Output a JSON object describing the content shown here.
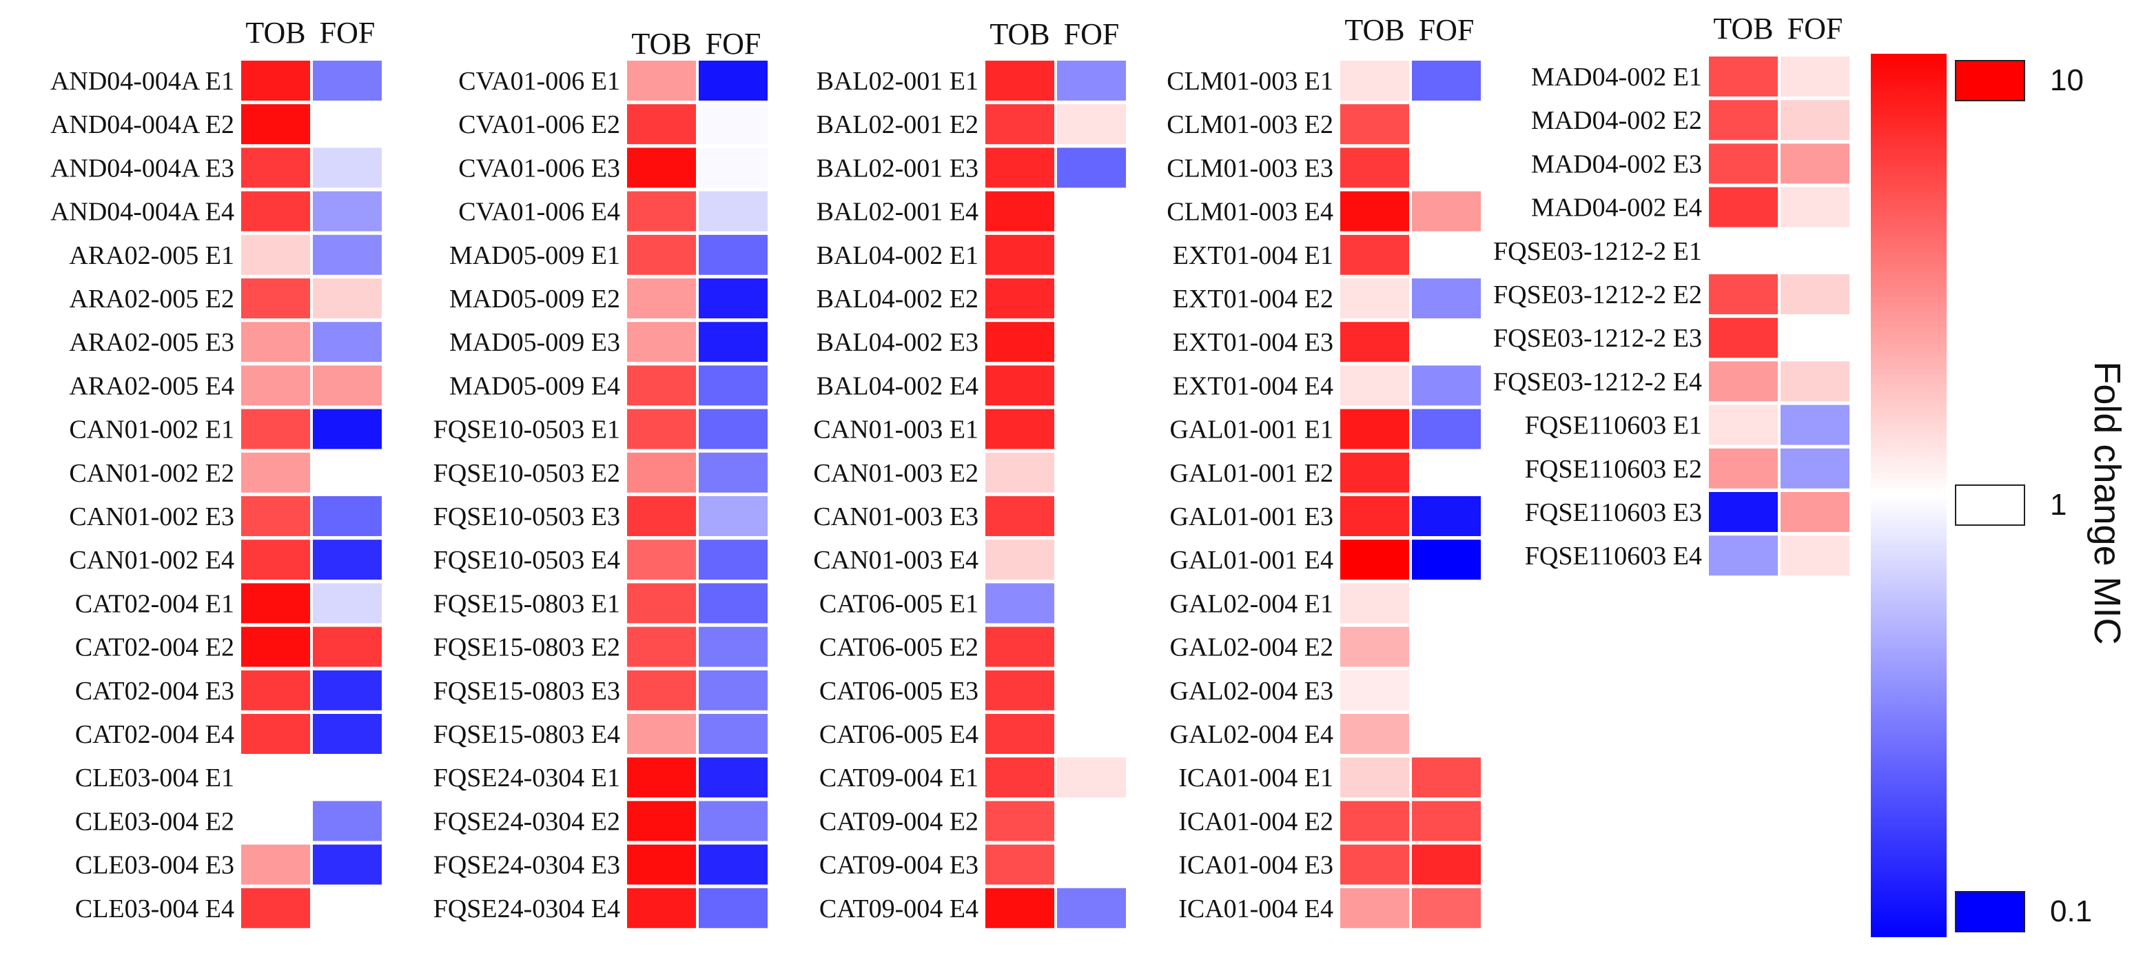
{
  "chart_data": {
    "type": "heatmap",
    "columns": [
      "TOB",
      "FOF"
    ],
    "scale": "log",
    "vmin": 0.1,
    "vmax": 10,
    "colors": {
      "low": "#0000ff",
      "mid": "#ffffff",
      "high": "#ff0000"
    },
    "legend": {
      "title": "Fold change MIC",
      "ticks": [
        {
          "label": "10",
          "value": 10
        },
        {
          "label": "1",
          "value": 1
        },
        {
          "label": "0.1",
          "value": 0.1
        }
      ]
    },
    "panels": [
      {
        "rows": [
          {
            "label": "AND04-004A E1",
            "TOB": 8,
            "FOF": 0.3
          },
          {
            "label": "AND04-004A E2",
            "TOB": 9,
            "FOF": 1
          },
          {
            "label": "AND04-004A E3",
            "TOB": 6,
            "FOF": 0.7
          },
          {
            "label": "AND04-004A E4",
            "TOB": 6,
            "FOF": 0.4
          },
          {
            "label": "ARA02-005 E1",
            "TOB": 1.5,
            "FOF": 0.35
          },
          {
            "label": "ARA02-005 E2",
            "TOB": 5,
            "FOF": 1.5
          },
          {
            "label": "ARA02-005 E3",
            "TOB": 2.5,
            "FOF": 0.35
          },
          {
            "label": "ARA02-005 E4",
            "TOB": 2.5,
            "FOF": 2.5
          },
          {
            "label": "CAN01-002 E1",
            "TOB": 5,
            "FOF": 0.12
          },
          {
            "label": "CAN01-002 E2",
            "TOB": 2.5,
            "FOF": 1
          },
          {
            "label": "CAN01-002 E3",
            "TOB": 5,
            "FOF": 0.25
          },
          {
            "label": "CAN01-002 E4",
            "TOB": 6,
            "FOF": 0.15
          },
          {
            "label": "CAT02-004 E1",
            "TOB": 9,
            "FOF": 0.7
          },
          {
            "label": "CAT02-004 E2",
            "TOB": 9,
            "FOF": 6
          },
          {
            "label": "CAT02-004 E3",
            "TOB": 6,
            "FOF": 0.15
          },
          {
            "label": "CAT02-004 E4",
            "TOB": 6,
            "FOF": 0.15
          },
          {
            "label": "CLE03-004 E1",
            "TOB": 1,
            "FOF": 1
          },
          {
            "label": "CLE03-004 E2",
            "TOB": 1,
            "FOF": 0.3
          },
          {
            "label": "CLE03-004 E3",
            "TOB": 2.5,
            "FOF": 0.15
          },
          {
            "label": "CLE03-004 E4",
            "TOB": 6,
            "FOF": 1
          }
        ]
      },
      {
        "rows": [
          {
            "label": "CVA01-006 E1",
            "TOB": 2.5,
            "FOF": 0.12
          },
          {
            "label": "CVA01-006 E2",
            "TOB": 6,
            "FOF": 0.95
          },
          {
            "label": "CVA01-006 E3",
            "TOB": 9,
            "FOF": 0.95
          },
          {
            "label": "CVA01-006 E4",
            "TOB": 5,
            "FOF": 0.7
          },
          {
            "label": "MAD05-009 E1",
            "TOB": 5,
            "FOF": 0.25
          },
          {
            "label": "MAD05-009 E2",
            "TOB": 2.5,
            "FOF": 0.13
          },
          {
            "label": "MAD05-009 E3",
            "TOB": 2.5,
            "FOF": 0.13
          },
          {
            "label": "MAD05-009 E4",
            "TOB": 5,
            "FOF": 0.25
          },
          {
            "label": "FQSE10-0503 E1",
            "TOB": 5,
            "FOF": 0.25
          },
          {
            "label": "FQSE10-0503 E2",
            "TOB": 3,
            "FOF": 0.3
          },
          {
            "label": "FQSE10-0503 E3",
            "TOB": 6,
            "FOF": 0.45
          },
          {
            "label": "FQSE10-0503 E4",
            "TOB": 4,
            "FOF": 0.25
          },
          {
            "label": "FQSE15-0803 E1",
            "TOB": 5,
            "FOF": 0.25
          },
          {
            "label": "FQSE15-0803 E2",
            "TOB": 5,
            "FOF": 0.3
          },
          {
            "label": "FQSE15-0803 E3",
            "TOB": 5,
            "FOF": 0.3
          },
          {
            "label": "FQSE15-0803 E4",
            "TOB": 2.5,
            "FOF": 0.3
          },
          {
            "label": "FQSE24-0304 E1",
            "TOB": 9,
            "FOF": 0.14
          },
          {
            "label": "FQSE24-0304 E2",
            "TOB": 9,
            "FOF": 0.3
          },
          {
            "label": "FQSE24-0304 E3",
            "TOB": 9,
            "FOF": 0.14
          },
          {
            "label": "FQSE24-0304 E4",
            "TOB": 8,
            "FOF": 0.25
          }
        ]
      },
      {
        "rows": [
          {
            "label": "BAL02-001 E1",
            "TOB": 7,
            "FOF": 0.35
          },
          {
            "label": "BAL02-001 E2",
            "TOB": 6,
            "FOF": 1.3
          },
          {
            "label": "BAL02-001 E3",
            "TOB": 7,
            "FOF": 0.25
          },
          {
            "label": "BAL02-001 E4",
            "TOB": 8,
            "FOF": 1
          },
          {
            "label": "BAL04-002 E1",
            "TOB": 7,
            "FOF": 1
          },
          {
            "label": "BAL04-002 E2",
            "TOB": 7,
            "FOF": 1
          },
          {
            "label": "BAL04-002 E3",
            "TOB": 8,
            "FOF": 1
          },
          {
            "label": "BAL04-002 E4",
            "TOB": 7,
            "FOF": 1
          },
          {
            "label": "CAN01-003 E1",
            "TOB": 7,
            "FOF": 1
          },
          {
            "label": "CAN01-003 E2",
            "TOB": 1.5,
            "FOF": 1
          },
          {
            "label": "CAN01-003 E3",
            "TOB": 6,
            "FOF": 1
          },
          {
            "label": "CAN01-003 E4",
            "TOB": 1.5,
            "FOF": 1
          },
          {
            "label": "CAT06-005 E1",
            "TOB": 0.35,
            "FOF": 1
          },
          {
            "label": "CAT06-005 E2",
            "TOB": 6,
            "FOF": 1
          },
          {
            "label": "CAT06-005 E3",
            "TOB": 6,
            "FOF": 1
          },
          {
            "label": "CAT06-005 E4",
            "TOB": 6,
            "FOF": 1
          },
          {
            "label": "CAT09-004 E1",
            "TOB": 6,
            "FOF": 1.3
          },
          {
            "label": "CAT09-004 E2",
            "TOB": 5,
            "FOF": 1
          },
          {
            "label": "CAT09-004 E3",
            "TOB": 5,
            "FOF": 1
          },
          {
            "label": "CAT09-004 E4",
            "TOB": 9,
            "FOF": 0.3
          }
        ]
      },
      {
        "rows": [
          {
            "label": "CLM01-003 E1",
            "TOB": 1.3,
            "FOF": 0.25
          },
          {
            "label": "CLM01-003 E2",
            "TOB": 5,
            "FOF": 1
          },
          {
            "label": "CLM01-003 E3",
            "TOB": 6,
            "FOF": 1
          },
          {
            "label": "CLM01-003 E4",
            "TOB": 9,
            "FOF": 2.5
          },
          {
            "label": "EXT01-004 E1",
            "TOB": 6,
            "FOF": 1
          },
          {
            "label": "EXT01-004 E2",
            "TOB": 1.3,
            "FOF": 0.35
          },
          {
            "label": "EXT01-004 E3",
            "TOB": 7,
            "FOF": 1
          },
          {
            "label": "EXT01-004 E4",
            "TOB": 1.3,
            "FOF": 0.35
          },
          {
            "label": "GAL01-001 E1",
            "TOB": 8,
            "FOF": 0.25
          },
          {
            "label": "GAL01-001 E2",
            "TOB": 7,
            "FOF": 1
          },
          {
            "label": "GAL01-001 E3",
            "TOB": 7,
            "FOF": 0.12
          },
          {
            "label": "GAL01-001 E4",
            "TOB": 10,
            "FOF": 0.1
          },
          {
            "label": "GAL02-004 E1",
            "TOB": 1.3,
            "FOF": 1
          },
          {
            "label": "GAL02-004 E2",
            "TOB": 2,
            "FOF": 1
          },
          {
            "label": "GAL02-004 E3",
            "TOB": 1.2,
            "FOF": 1
          },
          {
            "label": "GAL02-004 E4",
            "TOB": 2,
            "FOF": 1
          },
          {
            "label": "ICA01-004 E1",
            "TOB": 1.5,
            "FOF": 5
          },
          {
            "label": "ICA01-004 E2",
            "TOB": 5,
            "FOF": 5
          },
          {
            "label": "ICA01-004 E3",
            "TOB": 5,
            "FOF": 7
          },
          {
            "label": "ICA01-004 E4",
            "TOB": 2.5,
            "FOF": 4
          }
        ]
      },
      {
        "rows": [
          {
            "label": "MAD04-002 E1",
            "TOB": 5,
            "FOF": 1.3
          },
          {
            "label": "MAD04-002 E2",
            "TOB": 5,
            "FOF": 1.5
          },
          {
            "label": "MAD04-002 E3",
            "TOB": 5,
            "FOF": 2.5
          },
          {
            "label": "MAD04-002 E4",
            "TOB": 6,
            "FOF": 1.3
          },
          {
            "label": "FQSE03-1212-2 E1",
            "TOB": 1,
            "FOF": 1
          },
          {
            "label": "FQSE03-1212-2 E2",
            "TOB": 5,
            "FOF": 1.5
          },
          {
            "label": "FQSE03-1212-2 E3",
            "TOB": 6,
            "FOF": 1
          },
          {
            "label": "FQSE03-1212-2 E4",
            "TOB": 2.5,
            "FOF": 1.5
          },
          {
            "label": "FQSE110603 E1",
            "TOB": 1.3,
            "FOF": 0.4
          },
          {
            "label": "FQSE110603 E2",
            "TOB": 2.5,
            "FOF": 0.4
          },
          {
            "label": "FQSE110603 E3",
            "TOB": 0.12,
            "FOF": 2.5
          },
          {
            "label": "FQSE110603 E4",
            "TOB": 0.4,
            "FOF": 1.3
          }
        ]
      }
    ]
  }
}
